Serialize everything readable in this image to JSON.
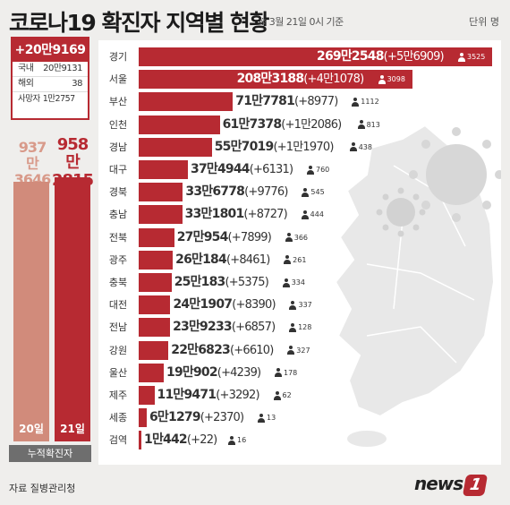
{
  "header": {
    "title": "코로나19 확진자 지역별 현황",
    "subtitle": "※ 3월 21일 0시 기준",
    "unit": "단위 명"
  },
  "summary": {
    "new_total": "+20만9169",
    "domestic_label": "국내",
    "domestic_value": "20만9131",
    "overseas_label": "해외",
    "overseas_value": "38",
    "deaths_label": "사망자",
    "deaths_value": "1만2757"
  },
  "cumulative": {
    "prev_line1": "937만",
    "prev_line2": "3646",
    "prev_day": "20일",
    "cur_line1": "958만",
    "cur_line2": "2815",
    "cur_day": "21일",
    "label": "누적확진자",
    "prev_value": 9373646,
    "cur_value": 9582815
  },
  "chart_data": {
    "type": "bar",
    "title": "코로나19 확진자 지역별 현황",
    "unit": "명",
    "categories": [
      "경기",
      "서울",
      "부산",
      "인천",
      "경남",
      "대구",
      "경북",
      "충남",
      "전북",
      "광주",
      "충북",
      "대전",
      "전남",
      "강원",
      "울산",
      "제주",
      "세종",
      "검역"
    ],
    "values": [
      2692548,
      2083188,
      717781,
      617378,
      557019,
      374944,
      336778,
      331801,
      270954,
      260184,
      250183,
      241907,
      239233,
      226823,
      190902,
      119471,
      61279,
      10442
    ],
    "value_labels": [
      "269만2548",
      "208만3188",
      "71만7781",
      "61만7378",
      "55만7019",
      "37만4944",
      "33만6778",
      "33만1801",
      "27만954",
      "26만184",
      "25만183",
      "24만1907",
      "23만9233",
      "22만6823",
      "19만902",
      "11만9471",
      "6만1279",
      "1만442"
    ],
    "changes": [
      "(+5만6909)",
      "(+4만1078)",
      "(+8977)",
      "(+1만2086)",
      "(+1만1970)",
      "(+6131)",
      "(+9776)",
      "(+8727)",
      "(+7899)",
      "(+8461)",
      "(+5375)",
      "(+8390)",
      "(+6857)",
      "(+6610)",
      "(+4239)",
      "(+3292)",
      "(+2370)",
      "(+22)"
    ],
    "deaths": [
      "3525",
      "3098",
      "1112",
      "813",
      "438",
      "760",
      "545",
      "444",
      "366",
      "261",
      "334",
      "337",
      "128",
      "327",
      "178",
      "62",
      "13",
      "16"
    ]
  },
  "footer": {
    "source": "자료 질병관리청",
    "logo_text": "news",
    "logo_mark": "1"
  }
}
